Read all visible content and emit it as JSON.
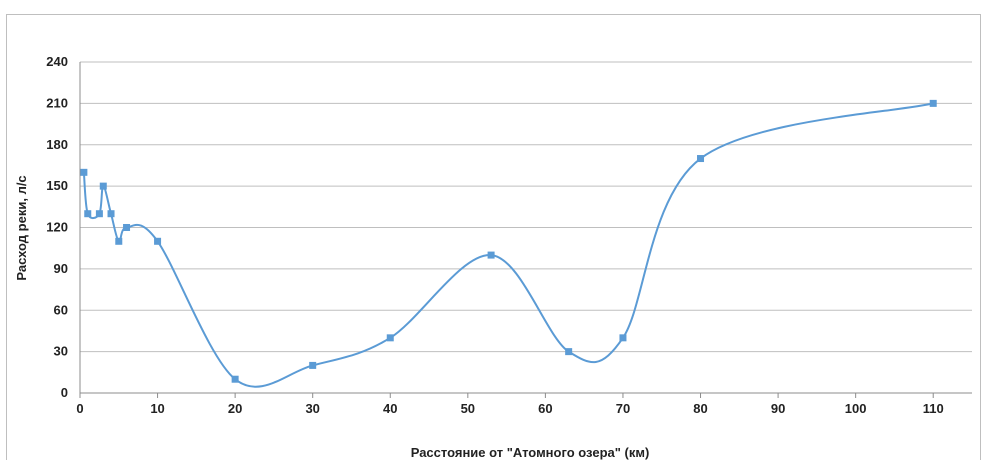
{
  "chart_data": {
    "type": "line",
    "xlabel": "Расстояние от \"Атомного озера\" (км)",
    "ylabel": "Расход реки, л/с",
    "xlim": [
      0,
      115
    ],
    "ylim": [
      0,
      240
    ],
    "x_ticks": [
      0,
      10,
      20,
      30,
      40,
      50,
      60,
      70,
      80,
      90,
      100,
      110
    ],
    "y_ticks": [
      0,
      30,
      60,
      90,
      120,
      150,
      180,
      210,
      240
    ],
    "grid": "horizontal",
    "smoothed": true,
    "marker": "square",
    "series": [
      {
        "color": "#5b9bd5",
        "x": [
          0.5,
          1,
          2.5,
          3,
          4,
          5,
          6,
          10,
          20,
          30,
          40,
          53,
          63,
          70,
          80,
          110
        ],
        "y": [
          160,
          130,
          130,
          150,
          130,
          110,
          120,
          110,
          10,
          20,
          40,
          100,
          30,
          40,
          170,
          210
        ]
      }
    ]
  }
}
